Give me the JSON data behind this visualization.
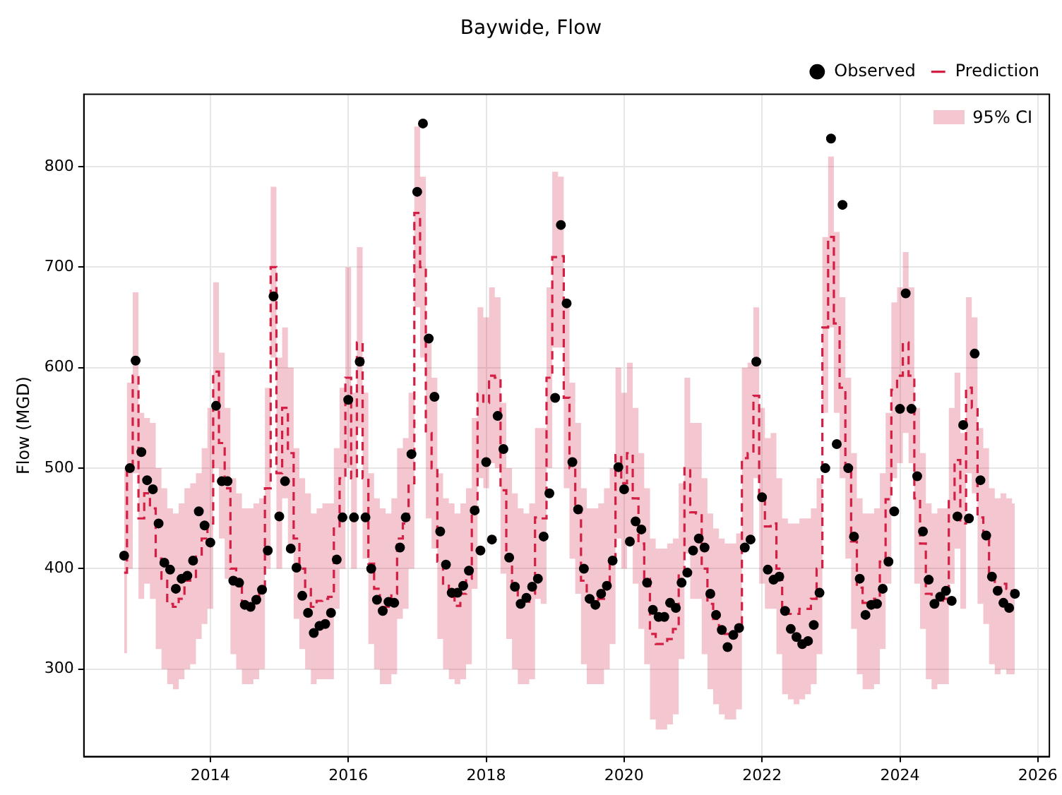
{
  "chart_data": {
    "type": "line",
    "title": "Baywide, Flow",
    "ylabel": "Flow (MGD)",
    "annotations": [
      "95% CI"
    ],
    "x": [
      "2012-10",
      "2012-11",
      "2012-12",
      "2013-01",
      "2013-02",
      "2013-03",
      "2013-04",
      "2013-05",
      "2013-06",
      "2013-07",
      "2013-08",
      "2013-09",
      "2013-10",
      "2013-11",
      "2013-12",
      "2014-01",
      "2014-02",
      "2014-03",
      "2014-04",
      "2014-05",
      "2014-06",
      "2014-07",
      "2014-08",
      "2014-09",
      "2014-10",
      "2014-11",
      "2014-12",
      "2015-01",
      "2015-02",
      "2015-03",
      "2015-04",
      "2015-05",
      "2015-06",
      "2015-07",
      "2015-08",
      "2015-09",
      "2015-10",
      "2015-11",
      "2015-12",
      "2016-01",
      "2016-02",
      "2016-03",
      "2016-04",
      "2016-05",
      "2016-06",
      "2016-07",
      "2016-08",
      "2016-09",
      "2016-10",
      "2016-11",
      "2016-12",
      "2017-01",
      "2017-02",
      "2017-03",
      "2017-04",
      "2017-05",
      "2017-06",
      "2017-07",
      "2017-08",
      "2017-09",
      "2017-10",
      "2017-11",
      "2017-12",
      "2018-01",
      "2018-02",
      "2018-03",
      "2018-04",
      "2018-05",
      "2018-06",
      "2018-07",
      "2018-08",
      "2018-09",
      "2018-10",
      "2018-11",
      "2018-12",
      "2019-01",
      "2019-02",
      "2019-03",
      "2019-04",
      "2019-05",
      "2019-06",
      "2019-07",
      "2019-08",
      "2019-09",
      "2019-10",
      "2019-11",
      "2019-12",
      "2020-01",
      "2020-02",
      "2020-03",
      "2020-04",
      "2020-05",
      "2020-06",
      "2020-07",
      "2020-08",
      "2020-09",
      "2020-10",
      "2020-11",
      "2020-12",
      "2021-01",
      "2021-02",
      "2021-03",
      "2021-04",
      "2021-05",
      "2021-06",
      "2021-07",
      "2021-08",
      "2021-09",
      "2021-10",
      "2021-11",
      "2021-12",
      "2022-01",
      "2022-02",
      "2022-03",
      "2022-04",
      "2022-05",
      "2022-06",
      "2022-07",
      "2022-08",
      "2022-09",
      "2022-10",
      "2022-11",
      "2022-12",
      "2023-01",
      "2023-02",
      "2023-03",
      "2023-04",
      "2023-05",
      "2023-06",
      "2023-07",
      "2023-08",
      "2023-09",
      "2023-10",
      "2023-11",
      "2023-12",
      "2024-01",
      "2024-02",
      "2024-03",
      "2024-04",
      "2024-05",
      "2024-06",
      "2024-07",
      "2024-08",
      "2024-09",
      "2024-10",
      "2024-11",
      "2024-12",
      "2025-01",
      "2025-02",
      "2025-03",
      "2025-04",
      "2025-05",
      "2025-06",
      "2025-07",
      "2025-08",
      "2025-09"
    ],
    "xlim": [
      "2012-03",
      "2026-03"
    ],
    "xticks": [
      "2014",
      "2016",
      "2018",
      "2020",
      "2022",
      "2024",
      "2026"
    ],
    "ylim": [
      213,
      872
    ],
    "yticks": [
      300,
      400,
      500,
      600,
      700,
      800
    ],
    "grid": true,
    "legend": "top right",
    "series": [
      {
        "name": "Observed",
        "type": "scatter",
        "marker": "circle",
        "color": "#000000",
        "values": [
          413,
          500,
          607,
          516,
          488,
          479,
          445,
          406,
          399,
          380,
          390,
          393,
          408,
          457,
          443,
          426,
          562,
          487,
          487,
          388,
          386,
          364,
          362,
          369,
          379,
          418,
          671,
          452,
          487,
          420,
          401,
          373,
          356,
          336,
          343,
          345,
          356,
          409,
          451,
          568,
          451,
          606,
          451,
          400,
          369,
          358,
          367,
          366,
          421,
          451,
          514,
          775,
          843,
          629,
          571,
          437,
          404,
          376,
          376,
          383,
          398,
          458,
          418,
          506,
          429,
          552,
          519,
          411,
          382,
          365,
          371,
          382,
          390,
          432,
          475,
          570,
          742,
          664,
          506,
          459,
          400,
          370,
          364,
          375,
          383,
          408,
          501,
          479,
          427,
          447,
          439,
          386,
          359,
          352,
          352,
          366,
          361,
          386,
          396,
          418,
          430,
          421,
          375,
          354,
          339,
          322,
          334,
          341,
          421,
          429,
          606,
          471,
          399,
          389,
          392,
          358,
          340,
          332,
          325,
          328,
          344,
          376,
          500,
          828,
          524,
          762,
          500,
          432,
          390,
          354,
          364,
          365,
          380,
          407,
          457,
          559,
          674,
          559,
          492,
          437,
          389,
          365,
          372,
          378,
          368,
          452,
          543,
          450,
          614,
          488,
          433,
          392,
          378,
          366,
          361,
          375
        ]
      },
      {
        "name": "Prediction",
        "type": "step",
        "line_style": "dashed",
        "color": "#d41f45",
        "values": [
          396,
          500,
          592,
          450,
          475,
          460,
          410,
          390,
          365,
          362,
          370,
          388,
          390,
          412,
          430,
          445,
          596,
          525,
          480,
          400,
          385,
          365,
          365,
          368,
          380,
          480,
          700,
          495,
          560,
          515,
          430,
          400,
          382,
          362,
          368,
          370,
          372,
          440,
          490,
          590,
          490,
          625,
          490,
          405,
          380,
          362,
          362,
          375,
          430,
          445,
          485,
          754,
          700,
          535,
          500,
          407,
          383,
          372,
          363,
          375,
          390,
          460,
          574,
          565,
          592,
          590,
          478,
          410,
          385,
          367,
          365,
          375,
          451,
          450,
          590,
          710,
          711,
          570,
          500,
          458,
          388,
          370,
          368,
          370,
          385,
          410,
          513,
          485,
          515,
          470,
          425,
          390,
          335,
          325,
          325,
          330,
          340,
          395,
          500,
          456,
          455,
          400,
          365,
          350,
          340,
          335,
          335,
          345,
          510,
          515,
          572,
          470,
          442,
          445,
          400,
          360,
          355,
          355,
          360,
          360,
          370,
          400,
          640,
          730,
          644,
          580,
          500,
          427,
          381,
          366,
          365,
          370,
          407,
          469,
          578,
          592,
          625,
          592,
          470,
          425,
          375,
          366,
          368,
          370,
          469,
          508,
          445,
          580,
          560,
          451,
          430,
          390,
          380,
          385,
          380,
          375
        ],
        "lower": [
          316,
          400,
          495,
          370,
          385,
          370,
          320,
          300,
          285,
          280,
          290,
          300,
          305,
          330,
          345,
          360,
          500,
          430,
          390,
          315,
          300,
          285,
          285,
          290,
          300,
          400,
          610,
          400,
          470,
          420,
          350,
          320,
          300,
          285,
          290,
          290,
          290,
          360,
          400,
          500,
          400,
          540,
          410,
          325,
          300,
          285,
          285,
          295,
          350,
          360,
          400,
          660,
          610,
          450,
          420,
          330,
          300,
          290,
          285,
          290,
          305,
          380,
          490,
          480,
          505,
          500,
          395,
          330,
          300,
          285,
          285,
          290,
          370,
          365,
          500,
          620,
          620,
          480,
          410,
          375,
          305,
          285,
          285,
          285,
          300,
          325,
          430,
          400,
          430,
          385,
          340,
          305,
          250,
          240,
          240,
          245,
          255,
          310,
          415,
          370,
          370,
          315,
          280,
          265,
          255,
          250,
          250,
          260,
          425,
          430,
          490,
          385,
          360,
          360,
          315,
          275,
          270,
          265,
          270,
          275,
          285,
          315,
          555,
          640,
          555,
          490,
          410,
          340,
          295,
          280,
          280,
          285,
          320,
          385,
          490,
          505,
          535,
          505,
          385,
          340,
          290,
          280,
          285,
          285,
          385,
          420,
          360,
          495,
          475,
          365,
          345,
          305,
          295,
          300,
          295,
          295
        ],
        "upper": [
          500,
          585,
          675,
          555,
          550,
          545,
          500,
          480,
          460,
          455,
          465,
          480,
          485,
          495,
          520,
          560,
          685,
          615,
          560,
          490,
          475,
          460,
          460,
          465,
          470,
          580,
          780,
          610,
          640,
          600,
          520,
          490,
          475,
          455,
          460,
          465,
          465,
          520,
          580,
          700,
          575,
          720,
          575,
          495,
          470,
          460,
          455,
          470,
          520,
          530,
          575,
          840,
          790,
          625,
          590,
          495,
          470,
          465,
          455,
          465,
          480,
          550,
          660,
          650,
          680,
          670,
          565,
          500,
          475,
          460,
          455,
          465,
          540,
          540,
          680,
          795,
          790,
          660,
          585,
          545,
          480,
          460,
          460,
          465,
          480,
          500,
          600,
          575,
          605,
          560,
          515,
          480,
          430,
          420,
          420,
          425,
          430,
          485,
          590,
          545,
          545,
          490,
          455,
          440,
          430,
          425,
          425,
          435,
          600,
          605,
          660,
          560,
          530,
          535,
          490,
          450,
          445,
          445,
          450,
          450,
          460,
          490,
          730,
          810,
          735,
          670,
          590,
          515,
          470,
          455,
          455,
          460,
          495,
          555,
          665,
          680,
          715,
          680,
          560,
          515,
          465,
          455,
          460,
          460,
          560,
          595,
          535,
          670,
          650,
          540,
          520,
          480,
          470,
          475,
          470,
          465
        ]
      }
    ]
  }
}
